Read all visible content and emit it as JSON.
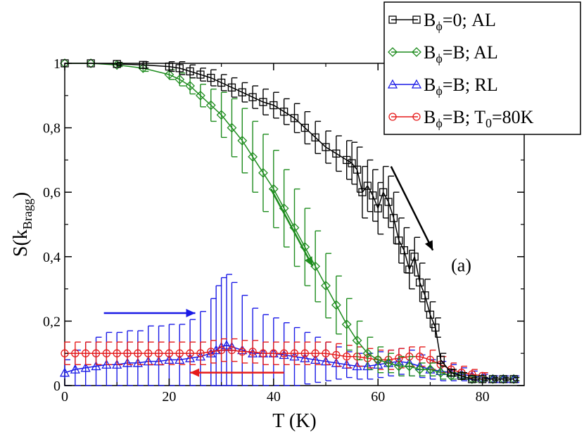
{
  "chart_data": {
    "type": "line",
    "panel_label": "(a)",
    "xlabel": "T (K)",
    "ylabel": {
      "main": "S(k",
      "sub": "Bragg",
      "close": ")"
    },
    "xlim": [
      0,
      88
    ],
    "ylim": [
      0,
      1.0
    ],
    "x_ticks": [
      0,
      20,
      40,
      60,
      80
    ],
    "x_tick_labels": [
      "0",
      "20",
      "40",
      "60",
      "80"
    ],
    "y_ticks": [
      0,
      0.2,
      0.4,
      0.6,
      0.8,
      1.0
    ],
    "y_tick_labels": [
      "0",
      "0,2",
      "0,4",
      "0,6",
      "0,8",
      "1"
    ],
    "legend_position": "top-right",
    "series": [
      {
        "name": "B_phi=0; AL",
        "legend": {
          "a": "B",
          "sub": "ϕ",
          "b": "=0; AL"
        },
        "color": "#000000",
        "marker": "square",
        "x": [
          0,
          5,
          10,
          15,
          20,
          22,
          24,
          26,
          28,
          30,
          32,
          34,
          36,
          38,
          40,
          42,
          44,
          46,
          48,
          50,
          52,
          54,
          55,
          56,
          57,
          58,
          59,
          60,
          61,
          62,
          63,
          64,
          65,
          66,
          67,
          68,
          69,
          70,
          71,
          72,
          74,
          76,
          78,
          80,
          82,
          84,
          86
        ],
        "y": [
          1.0,
          1.0,
          0.998,
          0.995,
          0.99,
          0.985,
          0.975,
          0.965,
          0.955,
          0.94,
          0.925,
          0.91,
          0.895,
          0.88,
          0.87,
          0.85,
          0.83,
          0.8,
          0.77,
          0.74,
          0.72,
          0.7,
          0.69,
          0.67,
          0.6,
          0.62,
          0.59,
          0.55,
          0.6,
          0.57,
          0.52,
          0.45,
          0.42,
          0.36,
          0.4,
          0.32,
          0.28,
          0.22,
          0.18,
          0.08,
          0.04,
          0.03,
          0.02,
          0.02,
          0.02,
          0.02,
          0.02
        ],
        "err": [
          0,
          0,
          0.005,
          0.01,
          0.015,
          0.02,
          0.02,
          0.02,
          0.025,
          0.025,
          0.03,
          0.03,
          0.035,
          0.04,
          0.04,
          0.04,
          0.045,
          0.05,
          0.05,
          0.05,
          0.055,
          0.06,
          0.065,
          0.07,
          0.08,
          0.08,
          0.08,
          0.08,
          0.08,
          0.08,
          0.08,
          0.07,
          0.07,
          0.06,
          0.06,
          0.06,
          0.05,
          0.04,
          0.03,
          0.02,
          0.01,
          0.01,
          0.005,
          0.005,
          0.005,
          0.005,
          0.005
        ]
      },
      {
        "name": "B_phi=B; AL",
        "legend": {
          "a": "B",
          "sub": "ϕ",
          "b": "=B; AL"
        },
        "color": "#1e8c1e",
        "marker": "diamond",
        "x": [
          0,
          5,
          10,
          15,
          20,
          22,
          24,
          26,
          28,
          30,
          32,
          34,
          36,
          38,
          40,
          42,
          44,
          46,
          48,
          50,
          52,
          54,
          56,
          58,
          60,
          62,
          64,
          66,
          68,
          70,
          72,
          74,
          76,
          78,
          80,
          82,
          84,
          86
        ],
        "y": [
          1.0,
          1.0,
          0.995,
          0.985,
          0.965,
          0.95,
          0.93,
          0.9,
          0.87,
          0.84,
          0.8,
          0.76,
          0.71,
          0.66,
          0.61,
          0.55,
          0.49,
          0.43,
          0.37,
          0.31,
          0.25,
          0.19,
          0.14,
          0.1,
          0.08,
          0.07,
          0.06,
          0.06,
          0.05,
          0.05,
          0.04,
          0.03,
          0.03,
          0.02,
          0.02,
          0.02,
          0.02,
          0.02
        ],
        "err": [
          0,
          0,
          0.005,
          0.01,
          0.015,
          0.02,
          0.025,
          0.035,
          0.05,
          0.07,
          0.09,
          0.1,
          0.11,
          0.12,
          0.12,
          0.12,
          0.12,
          0.12,
          0.11,
          0.1,
          0.09,
          0.08,
          0.06,
          0.05,
          0.04,
          0.03,
          0.03,
          0.03,
          0.02,
          0.02,
          0.02,
          0.01,
          0.01,
          0.01,
          0.005,
          0.005,
          0.005,
          0.005
        ]
      },
      {
        "name": "B_phi=B; RL",
        "legend": {
          "a": "B",
          "sub": "ϕ",
          "b": "=B; RL"
        },
        "color": "#1a1ae6",
        "marker": "triangle",
        "x": [
          0,
          2,
          4,
          6,
          8,
          10,
          12,
          14,
          16,
          18,
          20,
          22,
          24,
          26,
          28,
          29,
          30,
          31,
          32,
          34,
          36,
          38,
          40,
          42,
          44,
          46,
          48,
          50,
          52,
          54,
          56,
          58,
          60,
          62,
          64,
          66,
          68,
          70,
          72,
          74,
          76,
          78,
          80,
          82,
          84,
          86
        ],
        "y": [
          0.04,
          0.05,
          0.055,
          0.06,
          0.065,
          0.065,
          0.07,
          0.07,
          0.075,
          0.075,
          0.08,
          0.08,
          0.085,
          0.09,
          0.1,
          0.11,
          0.12,
          0.125,
          0.12,
          0.11,
          0.1,
          0.1,
          0.1,
          0.095,
          0.09,
          0.085,
          0.08,
          0.075,
          0.07,
          0.065,
          0.06,
          0.06,
          0.065,
          0.07,
          0.075,
          0.07,
          0.06,
          0.05,
          0.045,
          0.04,
          0.035,
          0.03,
          0.025,
          0.02,
          0.02,
          0.02
        ],
        "err": [
          0.04,
          0.06,
          0.08,
          0.09,
          0.1,
          0.1,
          0.1,
          0.1,
          0.11,
          0.11,
          0.11,
          0.11,
          0.12,
          0.14,
          0.17,
          0.2,
          0.215,
          0.22,
          0.2,
          0.17,
          0.14,
          0.12,
          0.11,
          0.1,
          0.09,
          0.08,
          0.07,
          0.06,
          0.05,
          0.04,
          0.04,
          0.04,
          0.04,
          0.04,
          0.04,
          0.04,
          0.035,
          0.03,
          0.03,
          0.025,
          0.02,
          0.015,
          0.01,
          0.01,
          0.01,
          0.01
        ]
      },
      {
        "name": "B_phi=B; T_0=80K",
        "legend": {
          "a": "B",
          "sub": "ϕ",
          "b": "=B; T",
          "sub2": "0",
          "c": "=80K"
        },
        "color": "#e61a1a",
        "marker": "circle",
        "x": [
          0,
          2,
          4,
          6,
          8,
          10,
          12,
          14,
          16,
          18,
          20,
          22,
          24,
          26,
          28,
          30,
          32,
          34,
          36,
          38,
          40,
          42,
          44,
          46,
          48,
          50,
          52,
          54,
          56,
          58,
          60,
          62,
          64,
          66,
          68,
          70,
          72,
          74,
          76,
          78,
          80
        ],
        "y": [
          0.1,
          0.1,
          0.1,
          0.1,
          0.1,
          0.1,
          0.1,
          0.1,
          0.1,
          0.1,
          0.1,
          0.1,
          0.1,
          0.1,
          0.105,
          0.11,
          0.11,
          0.105,
          0.105,
          0.1,
          0.1,
          0.1,
          0.1,
          0.1,
          0.1,
          0.1,
          0.095,
          0.09,
          0.09,
          0.085,
          0.08,
          0.08,
          0.085,
          0.09,
          0.09,
          0.08,
          0.065,
          0.05,
          0.04,
          0.035,
          0.03
        ],
        "err": [
          0.035,
          0.035,
          0.035,
          0.035,
          0.035,
          0.035,
          0.035,
          0.035,
          0.035,
          0.035,
          0.035,
          0.035,
          0.035,
          0.035,
          0.035,
          0.035,
          0.035,
          0.035,
          0.035,
          0.035,
          0.035,
          0.035,
          0.035,
          0.035,
          0.035,
          0.035,
          0.035,
          0.035,
          0.03,
          0.03,
          0.03,
          0.03,
          0.03,
          0.03,
          0.03,
          0.03,
          0.025,
          0.02,
          0.02,
          0.015,
          0.01
        ]
      }
    ],
    "arrows": [
      {
        "color": "#000000",
        "from": [
          62.5,
          0.68
        ],
        "to": [
          70.5,
          0.42
        ],
        "meaning": "B_phi=0 AL cooling direction"
      },
      {
        "color": "#1e8c1e",
        "from": [
          39.5,
          0.61
        ],
        "to": [
          47.5,
          0.37
        ],
        "meaning": "B_phi=B AL cooling direction"
      },
      {
        "color": "#1a1ae6",
        "from": [
          7.5,
          0.225
        ],
        "to": [
          25.0,
          0.225
        ],
        "meaning": "RL increasing T"
      },
      {
        "color": "#e61a1a",
        "from": [
          42.0,
          0.04
        ],
        "to": [
          24.0,
          0.04
        ],
        "meaning": "T0=80K decreasing T"
      }
    ]
  }
}
